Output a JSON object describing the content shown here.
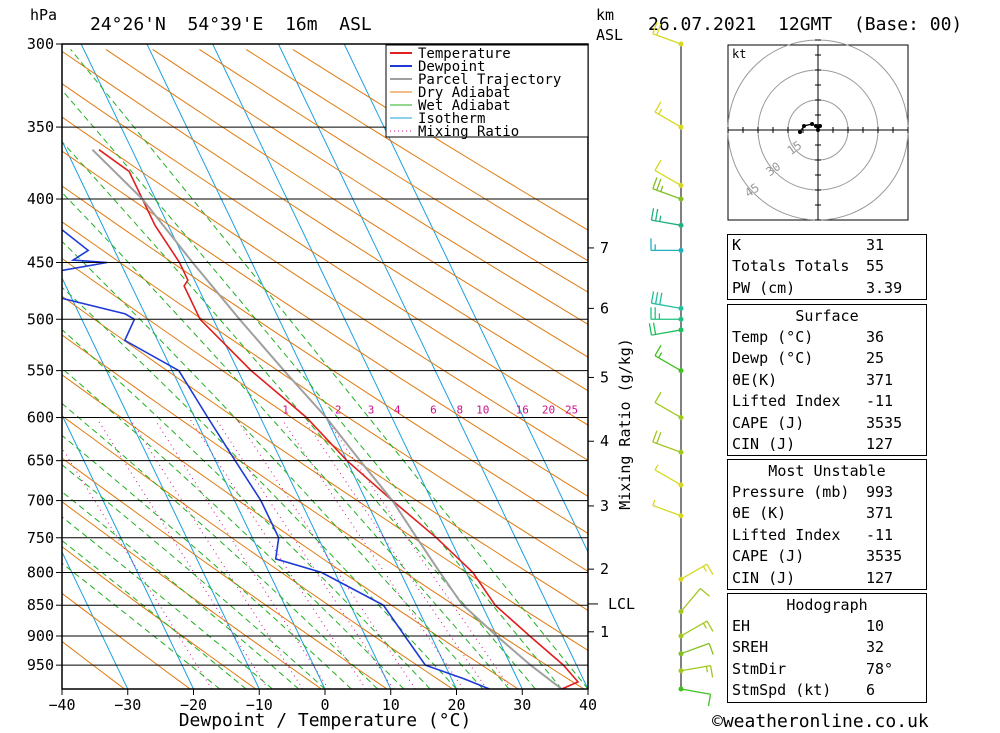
{
  "header": {
    "pressure_unit": "hPa",
    "location": "24°26'N  54°39'E  16m  ASL",
    "height_unit_top": "km",
    "height_unit_bottom": "ASL",
    "datetime": "26.07.2021  12GMT  (Base: 00)"
  },
  "chart_data": {
    "type": "line",
    "title": "24°26'N 54°39'E 16m ASL",
    "xlabel": "Dewpoint / Temperature (°C)",
    "ylabel": "hPa",
    "secondary_ylabel": "Mixing Ratio (g/kg)",
    "xlim": [
      -40,
      40
    ],
    "ylim": [
      300,
      993
    ],
    "x_ticks": [
      -40,
      -30,
      -20,
      -10,
      0,
      10,
      20,
      30,
      40
    ],
    "pressure_ticks": [
      300,
      350,
      400,
      450,
      500,
      550,
      600,
      650,
      700,
      750,
      800,
      850,
      900,
      950
    ],
    "km_ticks": [
      {
        "label": "7",
        "p": 438
      },
      {
        "label": "6",
        "p": 490
      },
      {
        "label": "5",
        "p": 557
      },
      {
        "label": "4",
        "p": 627
      },
      {
        "label": "3",
        "p": 707
      },
      {
        "label": "2",
        "p": 795
      },
      {
        "label": "1",
        "p": 893
      }
    ],
    "lcl": {
      "label": "LCL",
      "p": 848
    },
    "mixing_ratio_labels": [
      "1",
      "2",
      "3",
      "4",
      "6",
      "8",
      "10",
      "16",
      "20",
      "25"
    ],
    "mixing_ratio_label_x": [
      -6,
      2,
      7,
      11,
      16.5,
      20.5,
      24,
      30,
      34,
      37.5
    ],
    "legend": [
      "Temperature",
      "Dewpoint",
      "Parcel Trajectory",
      "Dry Adiabat",
      "Wet Adiabat",
      "Isotherm",
      "Mixing Ratio"
    ],
    "legend_position": "top",
    "colors": {
      "temperature": "#e02020",
      "dewpoint": "#1e3ad6",
      "parcel": "#a0a0a0",
      "dry_adiabat": "#e07a10",
      "wet_adiabat": "#20b020",
      "isotherm": "#1e9fe0",
      "mixing_ratio": "#d01090"
    },
    "series": [
      {
        "name": "Temperature",
        "points": [
          [
            993,
            36
          ],
          [
            980,
            39
          ],
          [
            950,
            38
          ],
          [
            900,
            35
          ],
          [
            850,
            32
          ],
          [
            800,
            31
          ],
          [
            750,
            28
          ],
          [
            700,
            24
          ],
          [
            650,
            20
          ],
          [
            600,
            17
          ],
          [
            550,
            12
          ],
          [
            500,
            8
          ],
          [
            470,
            8
          ],
          [
            465,
            9
          ],
          [
            450,
            9
          ],
          [
            420,
            8
          ],
          [
            400,
            8
          ],
          [
            380,
            8
          ],
          [
            365,
            5
          ]
        ]
      },
      {
        "name": "Dewpoint",
        "points": [
          [
            993,
            25
          ],
          [
            975,
            22
          ],
          [
            950,
            17
          ],
          [
            900,
            16
          ],
          [
            850,
            15
          ],
          [
            800,
            8
          ],
          [
            780,
            2
          ],
          [
            750,
            4
          ],
          [
            700,
            4
          ],
          [
            650,
            3
          ],
          [
            600,
            2
          ],
          [
            550,
            1
          ],
          [
            520,
            -5
          ],
          [
            500,
            -2
          ],
          [
            495,
            -3
          ],
          [
            480,
            -12
          ],
          [
            470,
            -14
          ],
          [
            465,
            -14
          ],
          [
            460,
            -13
          ],
          [
            450,
            -2
          ],
          [
            448,
            -7
          ],
          [
            440,
            -4
          ],
          [
            420,
            -7
          ],
          [
            403,
            -26
          ],
          [
            390,
            -24
          ],
          [
            350,
            -19
          ],
          [
            300,
            -16
          ]
        ]
      },
      {
        "name": "Parcel Trajectory",
        "points": [
          [
            993,
            36
          ],
          [
            950,
            33
          ],
          [
            900,
            30
          ],
          [
            848,
            27
          ],
          [
            800,
            26
          ],
          [
            750,
            25
          ],
          [
            700,
            24
          ],
          [
            650,
            22
          ],
          [
            600,
            20
          ],
          [
            550,
            17
          ],
          [
            500,
            14
          ],
          [
            450,
            11
          ],
          [
            400,
            8
          ],
          [
            365,
            4
          ]
        ]
      }
    ],
    "wind_barbs": [
      {
        "p": 300,
        "dir": 290,
        "kt": 20,
        "color": "#d8d820"
      },
      {
        "p": 350,
        "dir": 300,
        "kt": 15,
        "color": "#d8d820"
      },
      {
        "p": 390,
        "dir": 300,
        "kt": 10,
        "color": "#d8d820"
      },
      {
        "p": 400,
        "dir": 290,
        "kt": 25,
        "color": "#80c020"
      },
      {
        "p": 420,
        "dir": 280,
        "kt": 25,
        "color": "#20b080"
      },
      {
        "p": 440,
        "dir": 270,
        "kt": 15,
        "color": "#20b0c0"
      },
      {
        "p": 490,
        "dir": 280,
        "kt": 30,
        "color": "#20c0a0"
      },
      {
        "p": 500,
        "dir": 270,
        "kt": 25,
        "color": "#20c080"
      },
      {
        "p": 510,
        "dir": 260,
        "kt": 20,
        "color": "#20c060"
      },
      {
        "p": 550,
        "dir": 300,
        "kt": 15,
        "color": "#40c020"
      },
      {
        "p": 600,
        "dir": 300,
        "kt": 10,
        "color": "#a0c820"
      },
      {
        "p": 640,
        "dir": 290,
        "kt": 20,
        "color": "#a0c820"
      },
      {
        "p": 680,
        "dir": 300,
        "kt": 5,
        "color": "#d8d820"
      },
      {
        "p": 720,
        "dir": 290,
        "kt": 5,
        "color": "#d8d820"
      },
      {
        "p": 810,
        "dir": 60,
        "kt": 15,
        "color": "#d8d820"
      },
      {
        "p": 860,
        "dir": 40,
        "kt": 10,
        "color": "#a0c820"
      },
      {
        "p": 900,
        "dir": 60,
        "kt": 15,
        "color": "#a0c820"
      },
      {
        "p": 930,
        "dir": 70,
        "kt": 10,
        "color": "#80c020"
      },
      {
        "p": 960,
        "dir": 80,
        "kt": 15,
        "color": "#a0c820"
      },
      {
        "p": 993,
        "dir": 100,
        "kt": 10,
        "color": "#40c020"
      }
    ],
    "hodograph": {
      "unit": "kt",
      "ring_labels": [
        "15",
        "30",
        "45"
      ],
      "points": [
        [
          1,
          2
        ],
        [
          0,
          0
        ],
        [
          -1,
          2
        ],
        [
          -3,
          3
        ],
        [
          -7,
          2
        ],
        [
          -9,
          -1
        ]
      ]
    }
  },
  "indices": {
    "rows": [
      {
        "label": "K",
        "value": "31"
      },
      {
        "label": "Totals Totals",
        "value": "55"
      },
      {
        "label": "PW (cm)",
        "value": "3.39"
      }
    ]
  },
  "surface": {
    "title": "Surface",
    "rows": [
      {
        "label": "Temp (°C)",
        "value": "36"
      },
      {
        "label": "Dewp (°C)",
        "value": "25"
      },
      {
        "label": "θE(K)",
        "value": "371"
      },
      {
        "label": "Lifted Index",
        "value": "-11"
      },
      {
        "label": "CAPE (J)",
        "value": "3535"
      },
      {
        "label": "CIN (J)",
        "value": "127"
      }
    ]
  },
  "most_unstable": {
    "title": "Most Unstable",
    "rows": [
      {
        "label": "Pressure (mb)",
        "value": "993"
      },
      {
        "label": "θE (K)",
        "value": "371"
      },
      {
        "label": "Lifted Index",
        "value": "-11"
      },
      {
        "label": "CAPE (J)",
        "value": "3535"
      },
      {
        "label": "CIN (J)",
        "value": "127"
      }
    ]
  },
  "hodograph_table": {
    "title": "Hodograph",
    "rows": [
      {
        "label": "EH",
        "value": "10"
      },
      {
        "label": "SREH",
        "value": "32"
      },
      {
        "label": "StmDir",
        "value": "78°"
      },
      {
        "label": "StmSpd (kt)",
        "value": "6"
      }
    ]
  },
  "footer": {
    "copyright": "©weatheronline.co.uk"
  }
}
